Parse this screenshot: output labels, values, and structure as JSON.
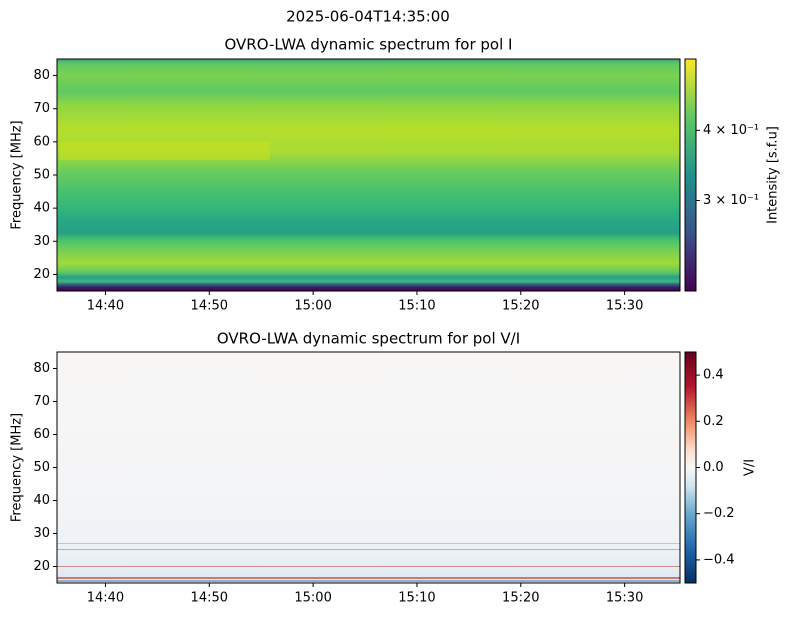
{
  "title": "2025-06-04T14:35:00",
  "chart_data": [
    {
      "type": "heatmap",
      "title": "OVRO-LWA dynamic spectrum for pol I",
      "ylabel": "Frequency [MHz]",
      "xlim": [
        "14:35:20",
        "15:35:20"
      ],
      "xticks": [
        "14:40",
        "14:50",
        "15:00",
        "15:10",
        "15:20",
        "15:30"
      ],
      "ylim": [
        15,
        85
      ],
      "yticks": [
        20,
        30,
        40,
        50,
        60,
        70,
        80
      ],
      "colormap": "viridis",
      "colorbar_label": "Intensity [s.f.u]",
      "colorbar_scale": "log",
      "clim": [
        0.207,
        0.536
      ],
      "colorbar_ticks": [
        {
          "value": 0.3,
          "label": "3 × 10⁻¹"
        },
        {
          "value": 0.4,
          "label": "4 × 10⁻¹"
        }
      ]
    },
    {
      "type": "heatmap",
      "title": "OVRO-LWA dynamic spectrum for pol V/I",
      "ylabel": "Frequency [MHz]",
      "xlim": [
        "14:35:20",
        "15:35:20"
      ],
      "xticks": [
        "14:40",
        "14:50",
        "15:00",
        "15:10",
        "15:20",
        "15:30"
      ],
      "ylim": [
        15,
        85
      ],
      "yticks": [
        20,
        30,
        40,
        50,
        60,
        70,
        80
      ],
      "colormap": "RdBu_r",
      "colorbar_label": "V/I",
      "colorbar_scale": "linear",
      "clim": [
        -0.5,
        0.5
      ],
      "colorbar_ticks": [
        {
          "value": -0.4,
          "label": "−0.4"
        },
        {
          "value": -0.2,
          "label": "−0.2"
        },
        {
          "value": 0,
          "label": "0.0"
        },
        0.2,
        0.4
      ]
    }
  ]
}
